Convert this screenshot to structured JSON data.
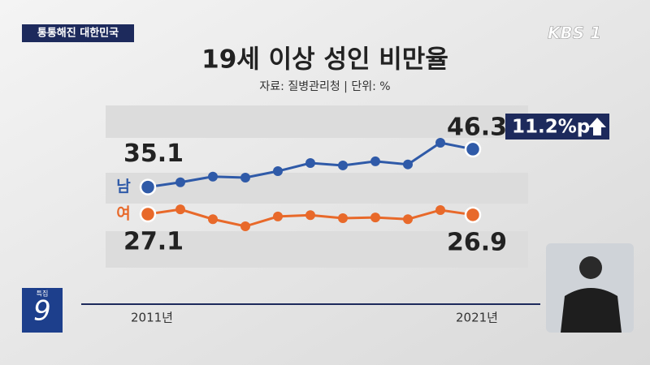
{
  "chart_data": {
    "type": "line",
    "tag": "통통해진 대한민국",
    "logo": "KBS 1",
    "badge_small": "특집",
    "badge_big": "9",
    "title": "19세 이상 성인 비만율",
    "subtitle": "자료: 질병관리청 | 단위: %",
    "annotation": "11.2%p",
    "categories": [
      "2011년",
      null,
      null,
      null,
      null,
      null,
      null,
      null,
      null,
      null,
      "2021년"
    ],
    "series": [
      {
        "name": "남",
        "color": "#2f5aa8",
        "values": [
          35.1,
          36.5,
          38.2,
          37.9,
          39.8,
          42.2,
          41.5,
          42.7,
          41.8,
          48.2,
          46.3
        ]
      },
      {
        "name": "여",
        "color": "#e8692a",
        "values": [
          27.1,
          28.5,
          25.6,
          23.5,
          26.4,
          26.8,
          25.9,
          26.1,
          25.6,
          28.3,
          26.9
        ]
      }
    ]
  }
}
